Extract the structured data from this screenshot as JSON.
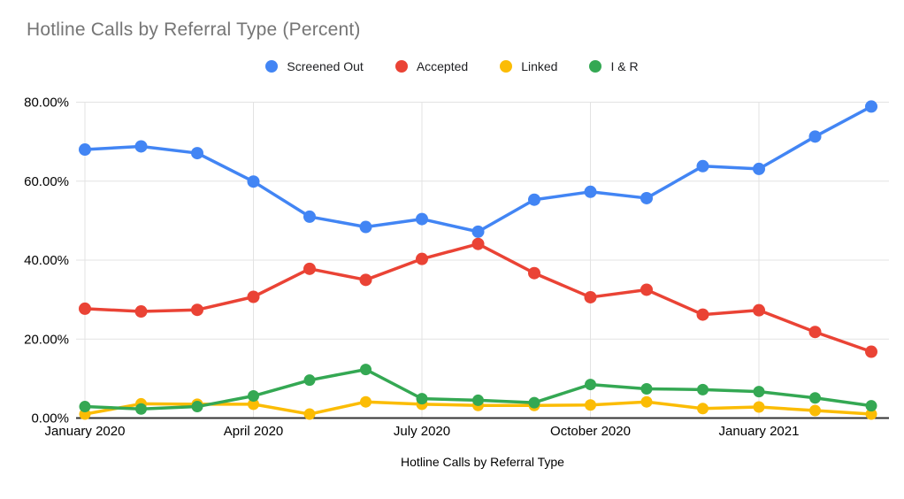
{
  "page": {
    "background": "#ffffff"
  },
  "header": {
    "title": "Hotline Calls by Referral Type (Percent)",
    "title_color": "#757575"
  },
  "legend": {
    "position": "top"
  },
  "axis_styles": {
    "gridline_color": "#e3e3e3",
    "baseline_color": "#333333",
    "tick_label_color": "#000000"
  },
  "chart_data": {
    "type": "line",
    "title": "Hotline Calls by Referral Type (Percent)",
    "xlabel": "Hotline Calls by Referral Type",
    "ylabel": "",
    "ylim": [
      0,
      80
    ],
    "grid": true,
    "legend_position": "top",
    "y_ticks": [
      "0.00%",
      "20.00%",
      "40.00%",
      "60.00%",
      "80.00%"
    ],
    "y_tick_values": [
      0,
      20,
      40,
      60,
      80
    ],
    "x_tick_labels": [
      "January 2020",
      "April 2020",
      "July 2020",
      "October 2020",
      "January 2021"
    ],
    "x_tick_indices": [
      0,
      3,
      6,
      9,
      12
    ],
    "categories": [
      "January 2020",
      "February 2020",
      "March 2020",
      "April 2020",
      "May 2020",
      "June 2020",
      "July 2020",
      "August 2020",
      "September 2020",
      "October 2020",
      "November 2020",
      "December 2020",
      "January 2021",
      "February 2021",
      "March 2021"
    ],
    "series": [
      {
        "name": "Screened Out",
        "color": "#4285F4",
        "values": [
          68.0,
          68.8,
          67.1,
          59.9,
          51.0,
          48.4,
          50.4,
          47.2,
          55.3,
          57.3,
          55.7,
          63.8,
          63.1,
          71.3,
          78.9
        ]
      },
      {
        "name": "Accepted",
        "color": "#EA4335",
        "values": [
          27.7,
          27.0,
          27.4,
          30.7,
          37.8,
          35.0,
          40.3,
          44.1,
          36.7,
          30.6,
          32.5,
          26.2,
          27.3,
          21.8,
          16.8
        ]
      },
      {
        "name": "Linked",
        "color": "#FBBC04",
        "values": [
          1.0,
          3.6,
          3.5,
          3.5,
          1.0,
          4.1,
          3.5,
          3.2,
          3.2,
          3.3,
          4.1,
          2.4,
          2.8,
          1.9,
          1.0
        ]
      },
      {
        "name": "I & R",
        "color": "#34A853",
        "values": [
          2.9,
          2.3,
          2.9,
          5.6,
          9.6,
          12.3,
          4.9,
          4.5,
          3.9,
          8.5,
          7.4,
          7.2,
          6.7,
          5.1,
          3.1
        ]
      }
    ]
  }
}
